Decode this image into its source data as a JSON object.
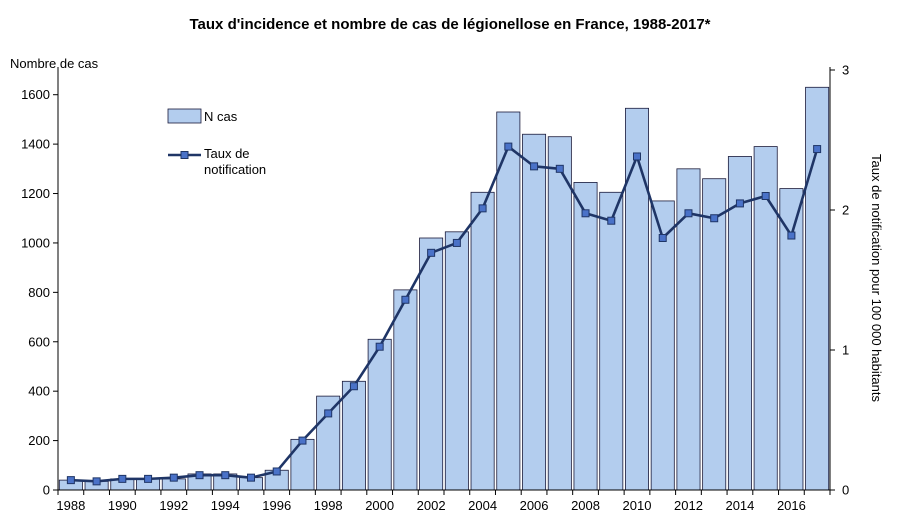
{
  "chart_data": {
    "type": "bar+line",
    "title": "Taux d'incidence et nombre de cas de légionellose en France, 1988-2017*",
    "left_axis_label": "Nombre de cas",
    "right_axis_label": "Taux de notification pour 100 000 habitants",
    "years": [
      1988,
      1989,
      1990,
      1991,
      1992,
      1993,
      1994,
      1995,
      1996,
      1997,
      1998,
      1999,
      2000,
      2001,
      2002,
      2003,
      2004,
      2005,
      2006,
      2007,
      2008,
      2009,
      2010,
      2011,
      2012,
      2013,
      2014,
      2015,
      2016,
      2017
    ],
    "x_tick_labels": [
      "1988",
      "1990",
      "1992",
      "1994",
      "1996",
      "1998",
      "2000",
      "2002",
      "2004",
      "2006",
      "2008",
      "2010",
      "2012",
      "2014",
      "2016"
    ],
    "y_left_ticks": [
      0,
      200,
      400,
      600,
      800,
      1000,
      1200,
      1400,
      1600
    ],
    "y_left_range": [
      0,
      1700
    ],
    "y_right_ticks": [
      0,
      1,
      2,
      3
    ],
    "y_right_range": [
      0,
      3
    ],
    "series": [
      {
        "name": "N cas",
        "type": "bar",
        "axis": "left",
        "values": [
          40,
          35,
          45,
          45,
          45,
          65,
          65,
          50,
          80,
          205,
          380,
          440,
          610,
          810,
          1020,
          1045,
          1205,
          1530,
          1440,
          1430,
          1245,
          1205,
          1545,
          1170,
          1300,
          1260,
          1350,
          1390,
          1220,
          1630
        ]
      },
      {
        "name": "Taux de notification",
        "type": "line",
        "axis": "left-scaled",
        "values": [
          40,
          35,
          45,
          45,
          50,
          60,
          60,
          50,
          75,
          200,
          310,
          420,
          580,
          770,
          960,
          1000,
          1140,
          1390,
          1310,
          1300,
          1120,
          1090,
          1350,
          1020,
          1120,
          1100,
          1160,
          1190,
          1030,
          1380
        ]
      }
    ],
    "legend": [
      "N cas",
      "Taux de",
      "notification"
    ],
    "colors": {
      "bar_fill": "#b3cdee",
      "bar_stroke": "#1a1a3a",
      "line": "#1f3566",
      "marker": "#4a72c8"
    }
  }
}
